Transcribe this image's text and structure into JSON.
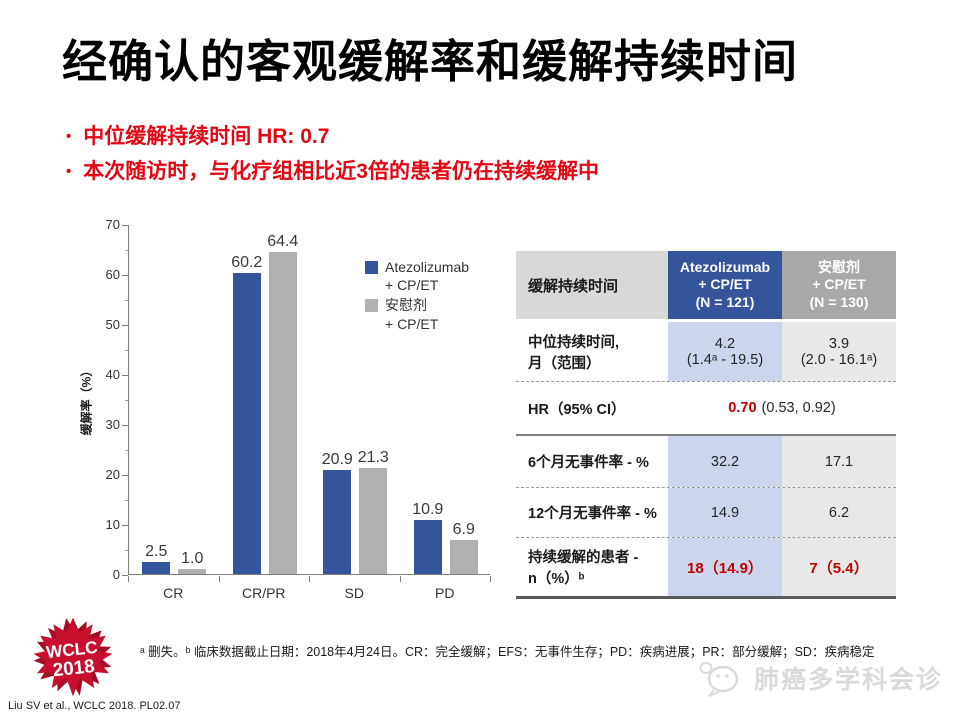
{
  "slide": {
    "title": "经确认的客观缓解率和缓解持续时间",
    "bullets": [
      "中位缓解持续时间 HR: 0.7",
      "本次随访时，与化疗组相比近3倍的患者仍在持续缓解中"
    ],
    "footnote": "ᵃ 删失。ᵇ 临床数据截止日期：2018年4月24日。CR：完全缓解；EFS：无事件生存；PD：疾病进展；PR：部分缓解；SD：疾病稳定",
    "citation": "Liu SV et al., WCLC 2018. PL02.07",
    "watermark": "肺癌多学科会诊",
    "logo": {
      "line1": "WCLC",
      "line2": "2018"
    }
  },
  "chart_data": {
    "type": "bar",
    "categories": [
      "CR",
      "CR/PR",
      "SD",
      "PD"
    ],
    "series": [
      {
        "name": "Atezolizumab\n+ CP/ET",
        "values": [
          2.5,
          60.2,
          20.9,
          10.9
        ],
        "color": "#34559b"
      },
      {
        "name": "安慰剂\n+ CP/ET",
        "values": [
          1.0,
          64.4,
          21.3,
          6.9
        ],
        "color": "#b0b0b0"
      }
    ],
    "title": "",
    "xlabel": "",
    "ylabel": "缓解率（%）",
    "ylim": [
      0,
      70
    ],
    "ytick_step": 10,
    "yminor_step": 5,
    "grid": false,
    "legend_position": "upper right",
    "value_labels": true
  },
  "table": {
    "header": {
      "col0": "缓解持续时间",
      "col1": "Atezolizumab\n+ CP/ET\n(N = 121)",
      "col2": "安慰剂\n+ CP/ET\n(N = 130)"
    },
    "rows": {
      "median": {
        "label": "中位持续时间,\n月（范围）",
        "atezo": "4.2\n(1.4ᵃ - 19.5)",
        "placebo": "3.9\n(2.0 - 16.1ᵃ)"
      },
      "hr": {
        "label": "HR（95% CI）",
        "value_red": "0.70",
        "value_rest": "(0.53, 0.92)"
      },
      "efs6": {
        "label": "6个月无事件率 - %",
        "atezo": "32.2",
        "placebo": "17.1"
      },
      "efs12": {
        "label": "12个月无事件率 - %",
        "atezo": "14.9",
        "placebo": "6.2"
      },
      "ongoing": {
        "label": "持续缓解的患者 -\nn（%）ᵇ",
        "atezo": "18（14.9）",
        "placebo": "7（5.4）"
      }
    }
  },
  "colors": {
    "accent_blue": "#34559b",
    "bar_gray": "#b0b0b0",
    "light_blue_col": "#cbd5ec",
    "light_gray_col": "#e8e8e8",
    "header_gray": "#a8a8a8",
    "label_gray": "#d8d8d8",
    "bullet_red": "#e30613",
    "table_red": "#c00000",
    "logo_red": "#c8102e",
    "watermark_gray": "#dadada"
  }
}
